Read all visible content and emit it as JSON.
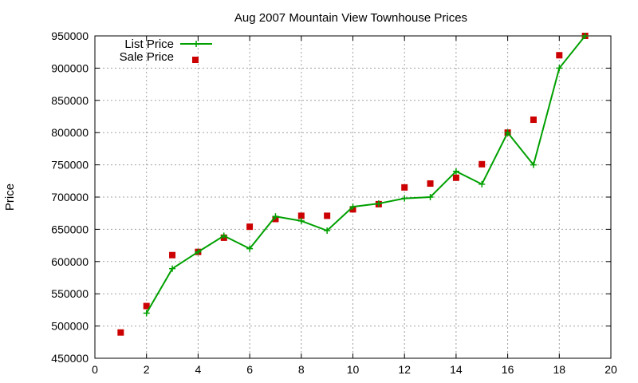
{
  "chart_data": {
    "type": "scatter",
    "title": "Aug 2007 Mountain View Townhouse Prices",
    "xlabel": "",
    "ylabel": "Price",
    "xlim": [
      0,
      20
    ],
    "ylim": [
      450000,
      950000
    ],
    "xticks": [
      0,
      2,
      4,
      6,
      8,
      10,
      12,
      14,
      16,
      18,
      20
    ],
    "yticks": [
      450000,
      500000,
      550000,
      600000,
      650000,
      700000,
      750000,
      800000,
      850000,
      900000,
      950000
    ],
    "grid": true,
    "legend_position": "top-left",
    "series": [
      {
        "name": "List Price",
        "style": "line-with-plus-markers",
        "color": "#00a000",
        "x": [
          2,
          3,
          4,
          5,
          6,
          7,
          8,
          9,
          10,
          11,
          12,
          13,
          14,
          15,
          16,
          17,
          18,
          19
        ],
        "y": [
          520000,
          589000,
          615000,
          640000,
          620000,
          670000,
          663000,
          648000,
          685000,
          690000,
          698000,
          700000,
          740000,
          720000,
          800000,
          750000,
          900000,
          950000
        ]
      },
      {
        "name": "Sale Price",
        "style": "square-markers",
        "color": "#cc0000",
        "x": [
          1,
          2,
          3,
          4,
          5,
          6,
          7,
          8,
          9,
          10,
          11,
          12,
          13,
          14,
          15,
          16,
          17,
          18,
          19
        ],
        "y": [
          490000,
          531000,
          610000,
          615000,
          637000,
          654000,
          666000,
          671000,
          671000,
          681000,
          689000,
          715000,
          721000,
          730000,
          751000,
          800000,
          820000,
          920000,
          950000
        ]
      }
    ]
  }
}
